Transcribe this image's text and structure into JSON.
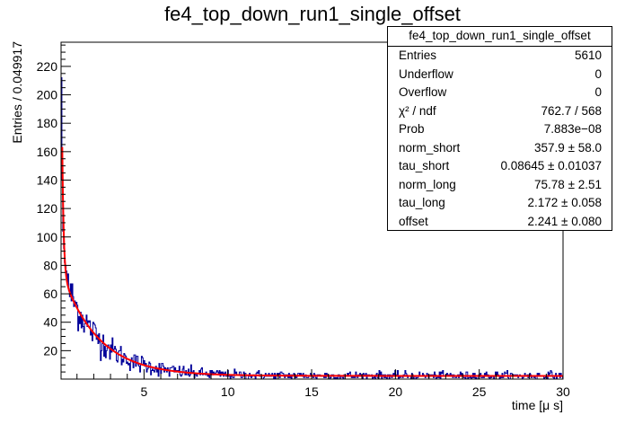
{
  "title": "fe4_top_down_run1_single_offset",
  "stats_box": {
    "title": "fe4_top_down_run1_single_offset",
    "rows": [
      {
        "key": "Entries",
        "value": "5610"
      },
      {
        "key": "Underflow",
        "value": "0"
      },
      {
        "key": "Overflow",
        "value": "0"
      },
      {
        "key": "χ² / ndf",
        "value": "762.7 / 568"
      },
      {
        "key": "Prob",
        "value": "7.883e−08"
      },
      {
        "key": "norm_short",
        "value": "357.9 ± 58.0"
      },
      {
        "key": "tau_short",
        "value": "0.08645 ± 0.01037"
      },
      {
        "key": "norm_long",
        "value": "75.78 ± 2.51"
      },
      {
        "key": "tau_long",
        "value": "2.172 ± 0.058"
      },
      {
        "key": "offset",
        "value": "2.241 ± 0.080"
      }
    ]
  },
  "chart_data": {
    "type": "histogram",
    "title": "fe4_top_down_run1_single_offset",
    "xlabel": "time [μ s]",
    "ylabel": "Entries / 0.049917",
    "xlim": [
      0.05,
      30
    ],
    "ylim": [
      0,
      237
    ],
    "x_ticks": [
      5,
      10,
      15,
      20,
      25,
      30
    ],
    "y_ticks": [
      20,
      40,
      60,
      80,
      100,
      120,
      140,
      160,
      180,
      200,
      220
    ],
    "bin_width": 0.049917,
    "colors": {
      "histogram": "#000099",
      "fit": "#ff0000"
    },
    "fit": {
      "function": "norm_short*exp(-t/tau_short) + norm_long*exp(-t/tau_long) + offset",
      "norm_short": 357.9,
      "tau_short": 0.08645,
      "norm_long": 75.78,
      "tau_long": 2.172,
      "offset": 2.241
    },
    "peak_bins": [
      {
        "x": 0.05,
        "y": 212
      },
      {
        "x": 0.1,
        "y": 140
      },
      {
        "x": 0.15,
        "y": 104
      },
      {
        "x": 0.2,
        "y": 92
      },
      {
        "x": 0.25,
        "y": 82
      },
      {
        "x": 0.3,
        "y": 80
      },
      {
        "x": 0.35,
        "y": 76
      },
      {
        "x": 0.4,
        "y": 68
      },
      {
        "x": 0.45,
        "y": 74
      },
      {
        "x": 0.5,
        "y": 62
      }
    ]
  }
}
